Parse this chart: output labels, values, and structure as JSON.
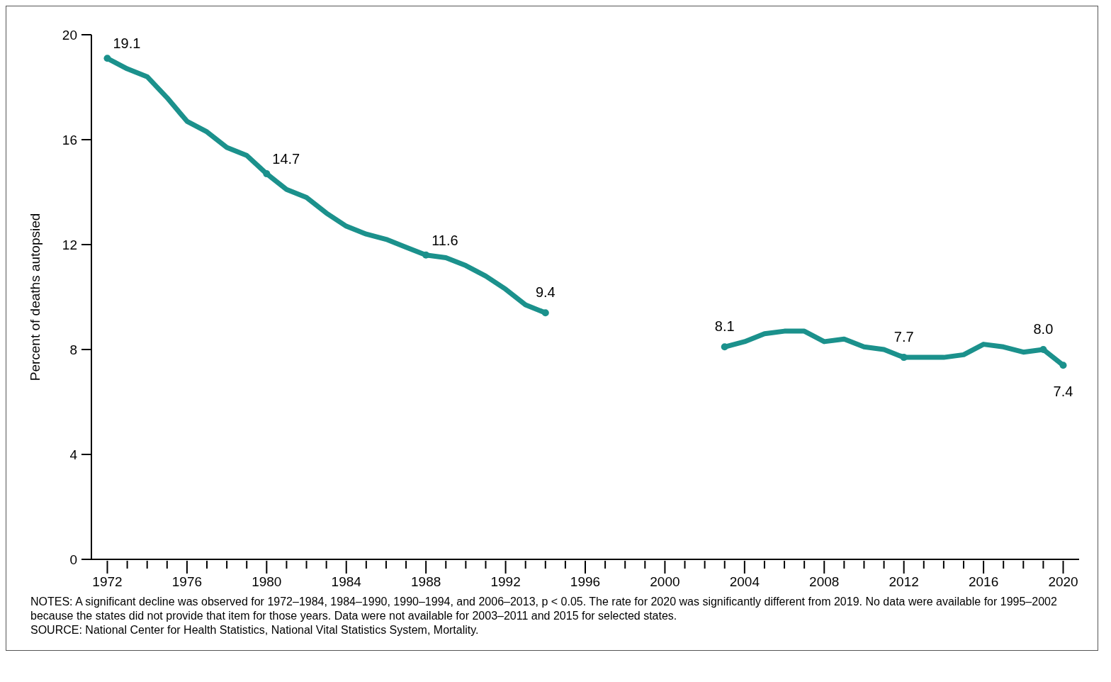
{
  "chart_data": {
    "type": "line",
    "ylabel": "Percent of deaths autopsied",
    "x": [
      1972,
      1973,
      1974,
      1975,
      1976,
      1977,
      1978,
      1979,
      1980,
      1981,
      1982,
      1983,
      1984,
      1985,
      1986,
      1987,
      1988,
      1989,
      1990,
      1991,
      1992,
      1993,
      1994,
      1995,
      1996,
      1997,
      1998,
      1999,
      2000,
      2001,
      2002,
      2003,
      2004,
      2005,
      2006,
      2007,
      2008,
      2009,
      2010,
      2011,
      2012,
      2013,
      2014,
      2015,
      2016,
      2017,
      2018,
      2019,
      2020
    ],
    "series": [
      {
        "color": "#1b918c",
        "values": [
          19.1,
          18.7,
          18.4,
          17.6,
          16.7,
          16.3,
          15.7,
          15.4,
          14.7,
          14.1,
          13.8,
          13.2,
          12.7,
          12.4,
          12.2,
          11.9,
          11.6,
          11.5,
          11.2,
          10.8,
          10.3,
          9.7,
          9.4,
          null,
          null,
          null,
          null,
          null,
          null,
          null,
          null,
          8.1,
          8.3,
          8.6,
          8.7,
          8.7,
          8.3,
          8.4,
          8.1,
          8.0,
          7.7,
          7.7,
          7.7,
          7.8,
          8.2,
          8.1,
          7.9,
          8.0,
          7.4
        ],
        "value_labels": [
          "19.1",
          null,
          null,
          null,
          null,
          null,
          null,
          null,
          "14.7",
          null,
          null,
          null,
          null,
          null,
          null,
          null,
          "11.6",
          null,
          null,
          null,
          null,
          null,
          "9.4",
          null,
          null,
          null,
          null,
          null,
          null,
          null,
          null,
          "8.1",
          null,
          null,
          null,
          null,
          null,
          null,
          null,
          null,
          "7.7",
          null,
          null,
          null,
          null,
          null,
          null,
          "8.0",
          "7.4"
        ]
      }
    ],
    "xlim": [
      1971.2,
      2020.8
    ],
    "xticks": [
      1972,
      {
        "value": 1973,
        "label": null
      },
      {
        "value": 1974,
        "label": null
      },
      {
        "value": 1975,
        "label": null
      },
      1976,
      {
        "value": 1977,
        "label": null
      },
      {
        "value": 1978,
        "label": null
      },
      {
        "value": 1979,
        "label": null
      },
      1980,
      {
        "value": 1981,
        "label": null
      },
      {
        "value": 1982,
        "label": null
      },
      {
        "value": 1983,
        "label": null
      },
      1984,
      {
        "value": 1985,
        "label": null
      },
      {
        "value": 1986,
        "label": null
      },
      {
        "value": 1987,
        "label": null
      },
      1988,
      {
        "value": 1989,
        "label": null
      },
      {
        "value": 1990,
        "label": null
      },
      {
        "value": 1991,
        "label": null
      },
      1992,
      {
        "value": 1993,
        "label": null
      },
      {
        "value": 1994,
        "label": null
      },
      {
        "value": 1995,
        "label": null
      },
      1996,
      {
        "value": 1997,
        "label": null
      },
      {
        "value": 1998,
        "label": null
      },
      {
        "value": 1999,
        "label": null
      },
      2000,
      {
        "value": 2001,
        "label": null
      },
      {
        "value": 2002,
        "label": null
      },
      {
        "value": 2003,
        "label": null
      },
      2004,
      {
        "value": 2005,
        "label": null
      },
      {
        "value": 2006,
        "label": null
      },
      {
        "value": 2007,
        "label": null
      },
      2008,
      {
        "value": 2009,
        "label": null
      },
      {
        "value": 2010,
        "label": null
      },
      {
        "value": 2011,
        "label": null
      },
      2012,
      {
        "value": 2013,
        "label": null
      },
      {
        "value": 2014,
        "label": null
      },
      {
        "value": 2015,
        "label": null
      },
      2016,
      {
        "value": 2017,
        "label": null
      },
      {
        "value": 2018,
        "label": null
      },
      {
        "value": 2019,
        "label": null
      },
      2020
    ],
    "ylim": [
      0,
      20
    ],
    "yticks": [
      0,
      4,
      8,
      12,
      16,
      20
    ],
    "grid": false,
    "legend": false,
    "line_style": "solid",
    "annotations": [
      "NOTES: A significant decline was observed for 1972–1984, 1984–1990, 1990–1994, and 2006–2013, p < 0.05. The rate for 2020 was significantly different from 2019. No data were available for 1995–2002 because the states did not provide that item for those years. Data were not available for 2003–2011 and 2015 for selected states.",
      "SOURCE: National Center for Health Statistics, National Vital Statistics System, Mortality."
    ]
  }
}
